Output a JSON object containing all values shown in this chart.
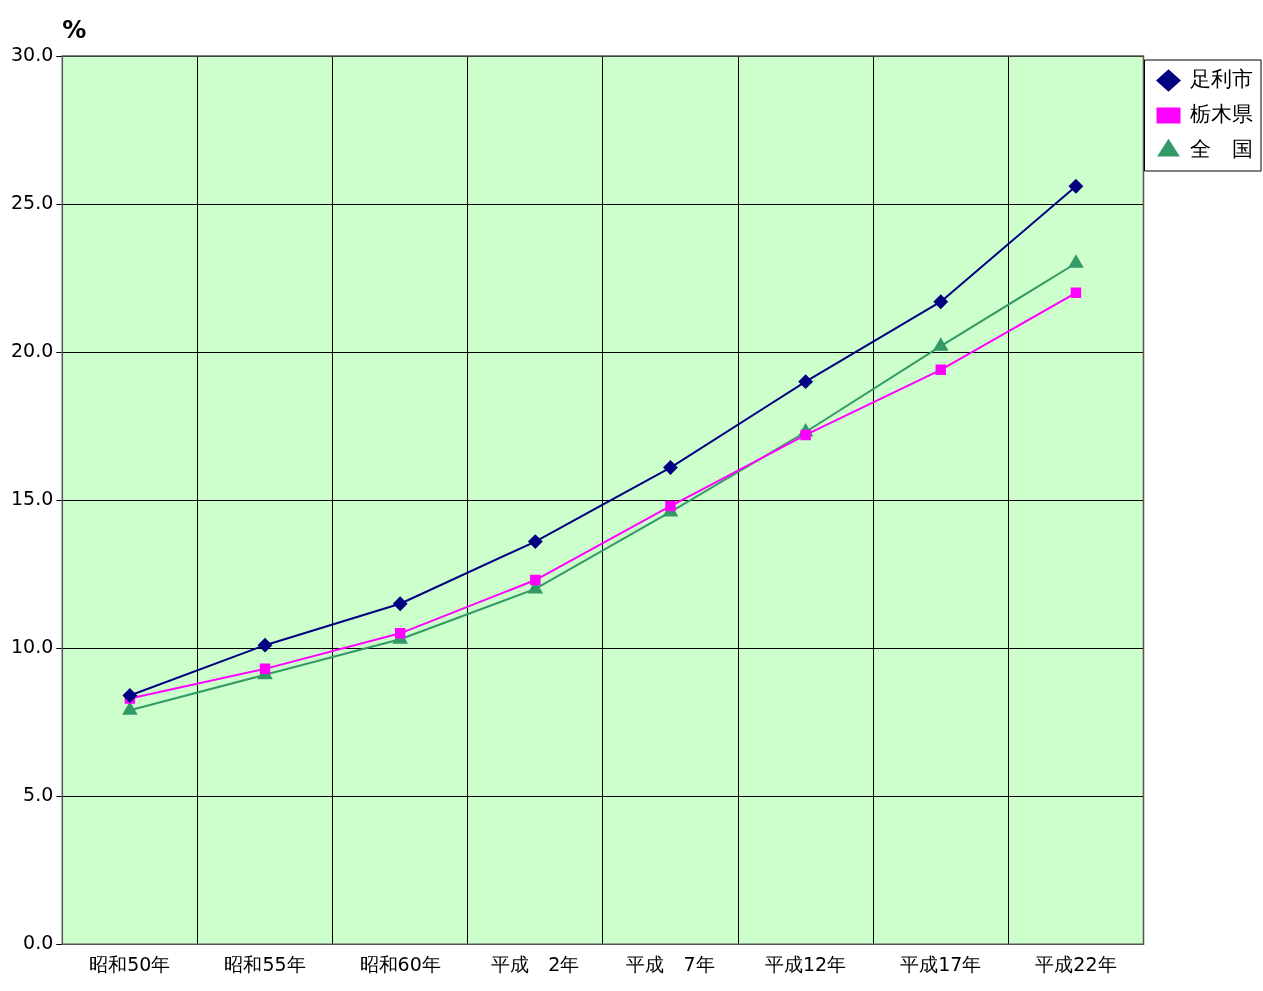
{
  "chart_data": {
    "type": "line",
    "ylabel": "%",
    "categories": [
      "昭和50年",
      "昭和55年",
      "昭和60年",
      "平成　2年",
      "平成　7年",
      "平成12年",
      "平成17年",
      "平成22年"
    ],
    "series": [
      {
        "name": "足利市",
        "color": "#000080",
        "marker": "diamond",
        "values": [
          8.4,
          10.1,
          11.5,
          13.6,
          16.1,
          19.0,
          21.7,
          25.6
        ]
      },
      {
        "name": "栃木県",
        "color": "#ff00ff",
        "marker": "square",
        "values": [
          8.3,
          9.3,
          10.5,
          12.3,
          14.8,
          17.2,
          19.4,
          22.0
        ]
      },
      {
        "name": "全　国",
        "color": "#339966",
        "marker": "triangle",
        "values": [
          7.9,
          9.1,
          10.3,
          12.0,
          14.6,
          17.3,
          20.2,
          23.0
        ]
      }
    ],
    "ylim": [
      0,
      30
    ],
    "yticks": [
      {
        "value": 0,
        "label": "0.0"
      },
      {
        "value": 5,
        "label": "5.0"
      },
      {
        "value": 10,
        "label": "10.0"
      },
      {
        "value": 15,
        "label": "15.0"
      },
      {
        "value": 20,
        "label": "20.0"
      },
      {
        "value": 25,
        "label": "25.0"
      },
      {
        "value": 30,
        "label": "30.0"
      }
    ],
    "grid": true,
    "legend": "top right",
    "line_style": "solid"
  }
}
